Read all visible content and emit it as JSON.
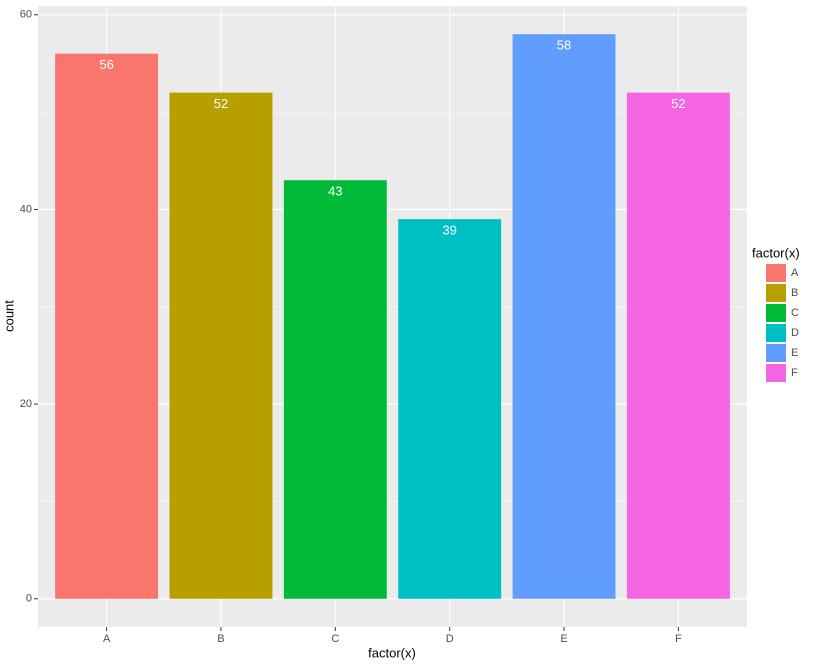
{
  "chart_data": {
    "type": "bar",
    "categories": [
      "A",
      "B",
      "C",
      "D",
      "E",
      "F"
    ],
    "values": [
      56,
      52,
      43,
      39,
      58,
      52
    ],
    "colors": [
      "#F8766D",
      "#B79F00",
      "#00BA38",
      "#00BFC4",
      "#619CFF",
      "#F564E3"
    ],
    "ylim": [
      -2.9,
      60.9
    ],
    "yticks": [
      0,
      20,
      40,
      60
    ],
    "minor_yticks": [
      10,
      30,
      50
    ],
    "grid": true,
    "xlabel": "factor(x)",
    "ylabel": "count",
    "legend_title": "factor(x)",
    "legend_position": "right"
  }
}
